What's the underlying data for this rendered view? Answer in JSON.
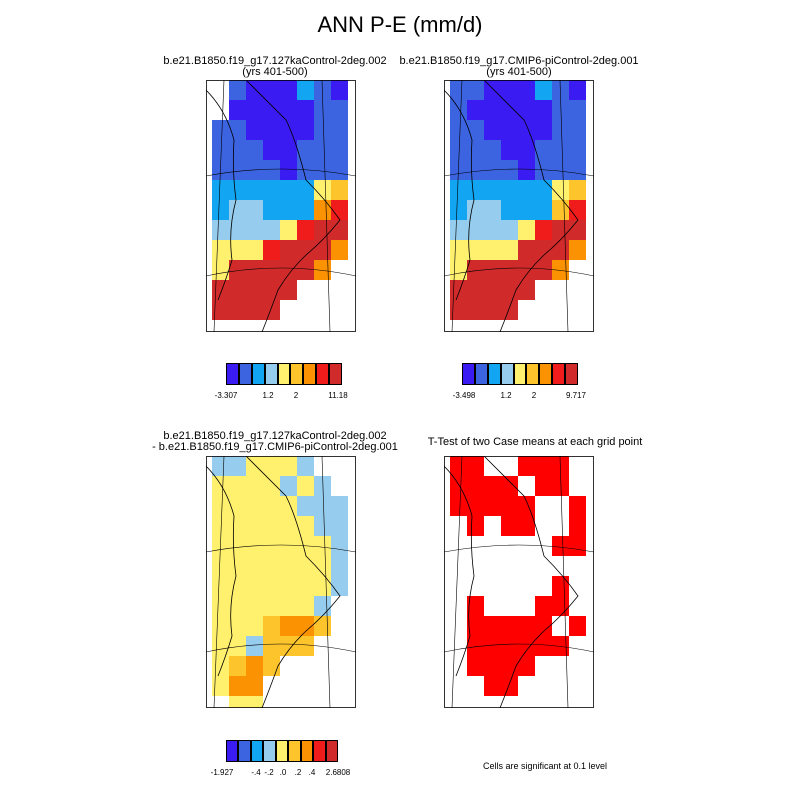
{
  "title": "ANN P-E (mm/d)",
  "colors": {
    "palette9": [
      "#3a1cf2",
      "#3c64e0",
      "#12a6f2",
      "#96cced",
      "#fff06e",
      "#fdc42c",
      "#fb9202",
      "#f01c1c",
      "#d12a2a"
    ],
    "diff": [
      "#3a1cf2",
      "#3c64e0",
      "#12a6f2",
      "#96cced",
      "#fff06e",
      "#fdc42c",
      "#fb9202",
      "#f01c1c",
      "#d12a2a"
    ],
    "significance": "#ff0000",
    "coast": "#000000"
  },
  "panels": {
    "p1": {
      "title_line1": "b.e21.B1850.f19_g17.127kaControl-2deg.002",
      "title_line2": "(yrs 401-500)",
      "colorbar_labels": [
        "-3.307",
        "1.2",
        "2",
        "11.18"
      ]
    },
    "p2": {
      "title_line1": "b.e21.B1850.f19_g17.CMIP6-piControl-2deg.001",
      "title_line2": "(yrs 401-500)",
      "colorbar_labels": [
        "-3.498",
        "1.2",
        "2",
        "9.717"
      ]
    },
    "p3": {
      "title_line1": "b.e21.B1850.f19_g17.127kaControl-2deg.002",
      "title_line2": "- b.e21.B1850.f19_g17.CMIP6-piControl-2deg.001",
      "colorbar_labels": [
        "-1.927",
        "-.4",
        "-.2",
        ".0",
        ".2",
        ".4",
        "2.6808"
      ]
    },
    "p4": {
      "title_line1": "T-Test of two Case means at each grid point",
      "note": "Cells are significant at 0.1 level"
    }
  }
}
